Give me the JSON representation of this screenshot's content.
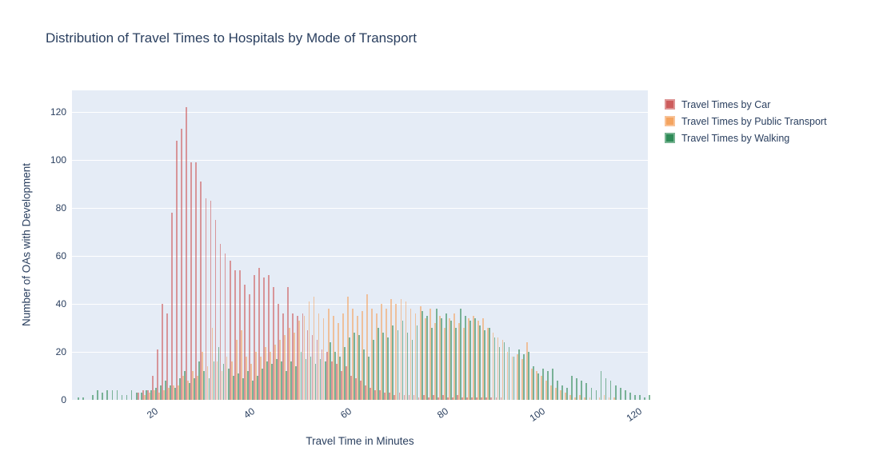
{
  "title": "Distribution of Travel Times to Hospitals by Mode of Transport",
  "colors": {
    "text": "#2a3f5f",
    "paper_bg": "#ffffff",
    "plot_bg": "#e5ecf6",
    "grid": "#ffffff",
    "car": "#CD5C5C",
    "public_transport": "#F4A460",
    "walking": "#2E8B57"
  },
  "chart_data": {
    "type": "bar",
    "subtype": "grouped-histogram",
    "title": "Distribution of Travel Times to Hospitals by Mode of Transport",
    "xlabel": "Travel Time in Minutes",
    "ylabel": "Number of OAs with Development",
    "legend_position": "top-right-outside",
    "grid": true,
    "bar_opacity": 0.6,
    "bin_start_minute": 4,
    "bin_width_minutes": 1,
    "xrange": [
      3.5,
      122.5
    ],
    "ylim": [
      0,
      129
    ],
    "xticks": [
      20,
      40,
      60,
      80,
      100,
      120
    ],
    "yticks": [
      0,
      20,
      40,
      60,
      80,
      100,
      120
    ],
    "series": [
      {
        "name": "Travel Times by Car",
        "color": "#CD5C5C",
        "values": [
          0,
          0,
          0,
          0,
          0,
          0,
          0,
          0,
          0,
          0,
          0,
          0,
          0,
          3,
          4,
          4,
          10,
          21,
          40,
          36,
          78,
          108,
          113,
          122,
          99,
          99,
          91,
          84,
          83,
          75,
          65,
          61,
          58,
          54,
          54,
          48,
          44,
          52,
          55,
          51,
          52,
          47,
          40,
          36,
          47,
          36,
          35,
          36,
          29,
          27,
          25,
          21,
          20,
          16,
          15,
          12,
          14,
          10,
          9,
          8,
          6,
          5,
          4,
          4,
          3,
          3,
          2,
          3,
          2,
          2,
          2,
          1,
          2,
          1,
          2,
          1,
          2,
          1,
          1,
          2,
          1,
          1,
          1,
          1,
          1,
          1,
          1,
          1,
          1,
          0,
          0,
          0,
          0,
          0,
          0,
          0,
          0,
          0,
          0,
          0,
          0,
          0,
          0,
          0,
          0,
          0,
          0,
          0,
          0,
          0,
          0,
          0,
          0,
          0,
          0,
          0,
          0,
          0,
          0
        ]
      },
      {
        "name": "Travel Times by Public Transport",
        "color": "#F4A460",
        "values": [
          0,
          0,
          0,
          0,
          0,
          0,
          0,
          0,
          0,
          0,
          0,
          0,
          0,
          0,
          2,
          3,
          4,
          3,
          4,
          5,
          6,
          6,
          10,
          8,
          12,
          10,
          20,
          14,
          30,
          16,
          12,
          18,
          16,
          25,
          29,
          18,
          15,
          20,
          18,
          22,
          20,
          23,
          25,
          27,
          30,
          28,
          33,
          35,
          41,
          43,
          36,
          34,
          38,
          35,
          32,
          36,
          43,
          38,
          35,
          37,
          44,
          38,
          36,
          40,
          38,
          42,
          40,
          42,
          41,
          38,
          36,
          39,
          34,
          38,
          32,
          35,
          30,
          34,
          36,
          32,
          30,
          34,
          35,
          33,
          34,
          30,
          28,
          26,
          25,
          20,
          18,
          19,
          17,
          24,
          13,
          12,
          10,
          8,
          6,
          5,
          4,
          3,
          2,
          1,
          2,
          1,
          1,
          0,
          1,
          2,
          1,
          1,
          0,
          0,
          0,
          0,
          0,
          0,
          0
        ]
      },
      {
        "name": "Travel Times by Walking",
        "color": "#2E8B57",
        "values": [
          1,
          1,
          0,
          2,
          4,
          3,
          4,
          4,
          4,
          2,
          2,
          4,
          3,
          3,
          4,
          4,
          5,
          6,
          8,
          6,
          5,
          9,
          12,
          7,
          9,
          16,
          12,
          9,
          16,
          22,
          15,
          13,
          10,
          11,
          9,
          12,
          8,
          10,
          13,
          16,
          15,
          17,
          16,
          12,
          16,
          14,
          20,
          17,
          18,
          15,
          17,
          16,
          24,
          20,
          18,
          22,
          26,
          28,
          27,
          21,
          18,
          25,
          30,
          28,
          26,
          31,
          29,
          33,
          28,
          25,
          31,
          37,
          35,
          30,
          38,
          34,
          36,
          33,
          30,
          38,
          35,
          33,
          34,
          31,
          29,
          30,
          26,
          22,
          24,
          22,
          18,
          21,
          19,
          20,
          14,
          11,
          13,
          12,
          13,
          8,
          6,
          5,
          10,
          9,
          8,
          7,
          5,
          4,
          12,
          9,
          8,
          6,
          5,
          4,
          3,
          2,
          2,
          1,
          2
        ]
      }
    ]
  }
}
